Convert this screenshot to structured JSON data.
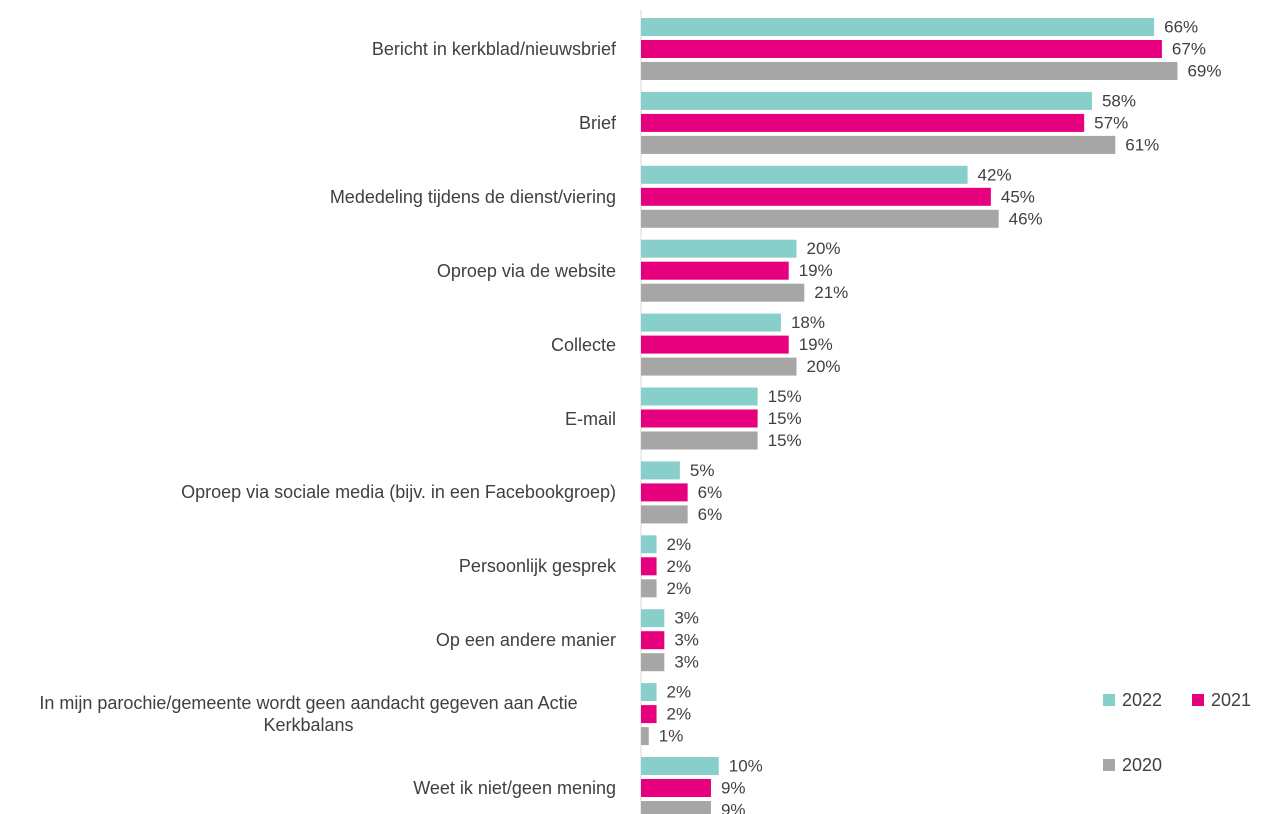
{
  "chart_data": {
    "type": "bar",
    "orientation": "horizontal",
    "categories": [
      "Bericht in kerkblad/nieuwsbrief",
      "Brief",
      "Mededeling tijdens de dienst/viering",
      "Oproep via de website",
      "Collecte",
      "E-mail",
      "Oproep via sociale media (bijv. in een Facebookgroep)",
      "Persoonlijk gesprek",
      "Op een andere manier",
      "In mijn parochie/gemeente wordt geen aandacht gegeven aan Actie Kerkbalans",
      "Weet ik niet/geen mening"
    ],
    "series": [
      {
        "name": "2022",
        "color": "#88cfcb",
        "values": [
          66,
          58,
          42,
          20,
          18,
          15,
          5,
          2,
          3,
          2,
          10
        ],
        "value_labels": [
          "66%",
          "58%",
          "42%",
          "20%",
          "18%",
          "15%",
          "5%",
          "2%",
          "3%",
          "2%",
          "10%"
        ]
      },
      {
        "name": "2021",
        "color": "#e6007e",
        "values": [
          67,
          57,
          45,
          19,
          19,
          15,
          6,
          2,
          3,
          2,
          9
        ],
        "value_labels": [
          "67%",
          "57%",
          "45%",
          "19%",
          "19%",
          "15%",
          "6%",
          "2%",
          "3%",
          "2%",
          "9%"
        ]
      },
      {
        "name": "2020",
        "color": "#a6a6a6",
        "values": [
          69,
          61,
          46,
          21,
          20,
          15,
          6,
          2,
          3,
          1,
          9
        ],
        "value_labels": [
          "69%",
          "61%",
          "46%",
          "21%",
          "20%",
          "15%",
          "6%",
          "2%",
          "3%",
          "1%",
          "9%"
        ]
      }
    ],
    "xlim": [
      0,
      80
    ],
    "legend": "right"
  }
}
